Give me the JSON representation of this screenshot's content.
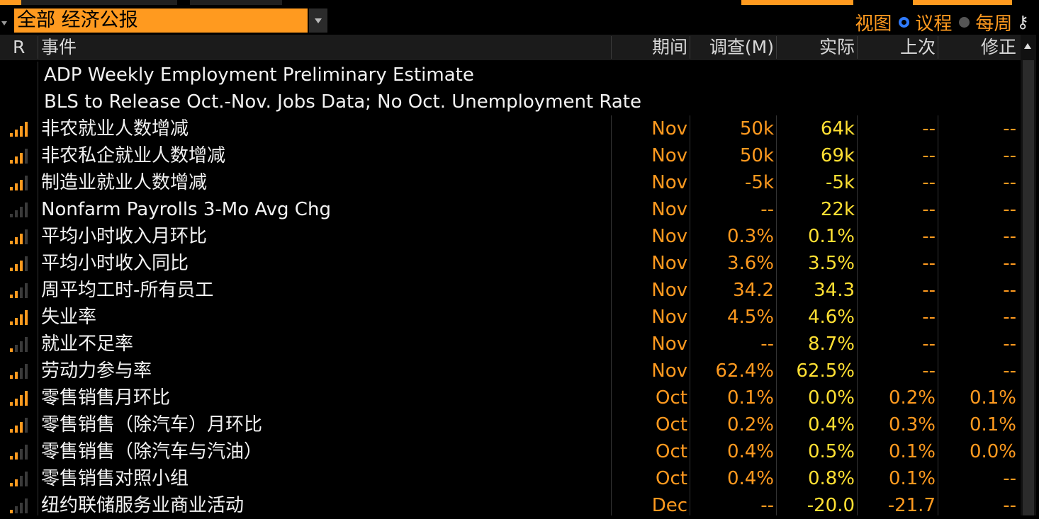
{
  "filter": {
    "selected": "全部 经济公报"
  },
  "views": {
    "view_label": "视图",
    "agenda_label": "议程",
    "weekly_label": "每周",
    "key_icon": "key-icon"
  },
  "columns": {
    "r": "R",
    "event": "事件",
    "period": "期间",
    "survey": "调查(M)",
    "actual": "实际",
    "prior": "上次",
    "revised": "修正"
  },
  "events": [
    {
      "relevance": 0,
      "event": "ADP Weekly Employment Preliminary Estimate",
      "period": "",
      "survey": "",
      "actual": "",
      "prior": "",
      "revised": ""
    },
    {
      "relevance": 0,
      "event": "BLS to Release Oct.-Nov. Jobs Data; No Oct. Unemployment Rate",
      "period": "",
      "survey": "",
      "actual": "",
      "prior": "",
      "revised": ""
    },
    {
      "relevance": 4,
      "event": "非农就业人数增减",
      "period": "Nov",
      "survey": "50k",
      "actual": "64k",
      "prior": "--",
      "revised": "--"
    },
    {
      "relevance": 3,
      "event": "非农私企就业人数增减",
      "period": "Nov",
      "survey": "50k",
      "actual": "69k",
      "prior": "--",
      "revised": "--"
    },
    {
      "relevance": 3,
      "event": "制造业就业人数增减",
      "period": "Nov",
      "survey": "-5k",
      "actual": "-5k",
      "prior": "--",
      "revised": "--"
    },
    {
      "relevance": 0,
      "event": "Nonfarm Payrolls 3-Mo Avg Chg",
      "period": "Nov",
      "survey": "--",
      "actual": "22k",
      "prior": "--",
      "revised": "--"
    },
    {
      "relevance": 3,
      "event": "平均小时收入月环比",
      "period": "Nov",
      "survey": "0.3%",
      "actual": "0.1%",
      "prior": "--",
      "revised": "--"
    },
    {
      "relevance": 3,
      "event": "平均小时收入同比",
      "period": "Nov",
      "survey": "3.6%",
      "actual": "3.5%",
      "prior": "--",
      "revised": "--"
    },
    {
      "relevance": 2,
      "event": "周平均工时-所有员工",
      "period": "Nov",
      "survey": "34.2",
      "actual": "34.3",
      "prior": "--",
      "revised": "--"
    },
    {
      "relevance": 4,
      "event": "失业率",
      "period": "Nov",
      "survey": "4.5%",
      "actual": "4.6%",
      "prior": "--",
      "revised": "--"
    },
    {
      "relevance": 1,
      "event": "就业不足率",
      "period": "Nov",
      "survey": "--",
      "actual": "8.7%",
      "prior": "--",
      "revised": "--"
    },
    {
      "relevance": 2,
      "event": "劳动力参与率",
      "period": "Nov",
      "survey": "62.4%",
      "actual": "62.5%",
      "prior": "--",
      "revised": "--"
    },
    {
      "relevance": 4,
      "event": "零售销售月环比",
      "period": "Oct",
      "survey": "0.1%",
      "actual": "0.0%",
      "prior": "0.2%",
      "revised": "0.1%"
    },
    {
      "relevance": 3,
      "event": "零售销售（除汽车）月环比",
      "period": "Oct",
      "survey": "0.2%",
      "actual": "0.4%",
      "prior": "0.3%",
      "revised": "0.1%"
    },
    {
      "relevance": 2,
      "event": "零售销售（除汽车与汽油）",
      "period": "Oct",
      "survey": "0.4%",
      "actual": "0.5%",
      "prior": "0.1%",
      "revised": "0.0%"
    },
    {
      "relevance": 2,
      "event": "零售销售对照小组",
      "period": "Oct",
      "survey": "0.4%",
      "actual": "0.8%",
      "prior": "0.1%",
      "revised": "--"
    },
    {
      "relevance": 1,
      "event": "纽约联储服务业商业活动",
      "period": "Dec",
      "survey": "--",
      "actual": "-20.0",
      "prior": "-21.7",
      "revised": "--"
    }
  ]
}
